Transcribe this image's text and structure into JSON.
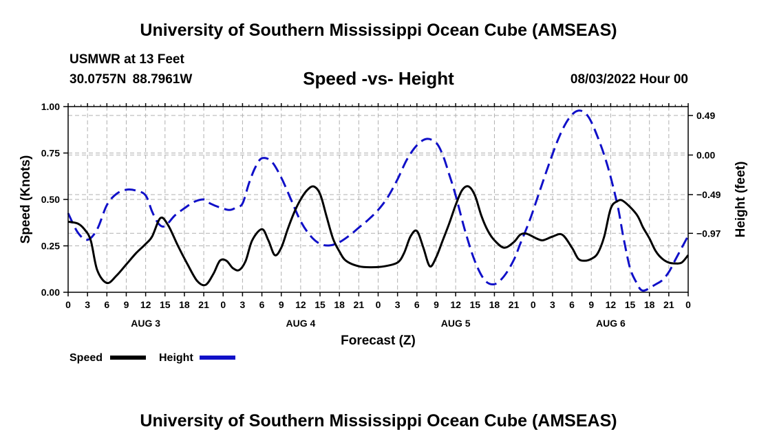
{
  "header": {
    "title": "University of Southern Mississippi Ocean Cube (AMSEAS)",
    "station": "USMWR at 13 Feet",
    "coordinates": "30.0757N  88.7961W",
    "subtitle": "Speed -vs- Height",
    "datestamp": "08/03/2022 Hour 00"
  },
  "footer": {
    "title": "University of Southern Mississippi Ocean Cube (AMSEAS)"
  },
  "chart_data": {
    "type": "line",
    "title": "Speed -vs- Height",
    "xlabel": "Forecast (Z)",
    "ylabel_left": "Speed (Knots)",
    "ylabel_right": "Height (feet)",
    "x_range_hours": [
      0,
      96
    ],
    "x_tick_step_hours": 3,
    "x_tick_labels": [
      "0",
      "3",
      "6",
      "9",
      "12",
      "15",
      "18",
      "21",
      "0",
      "3",
      "6",
      "9",
      "12",
      "15",
      "18",
      "21",
      "0",
      "3",
      "6",
      "9",
      "12",
      "15",
      "18",
      "21",
      "0",
      "3",
      "6",
      "9",
      "12",
      "15",
      "18",
      "21",
      "0"
    ],
    "day_labels": [
      {
        "hour": 12,
        "label": "AUG 3"
      },
      {
        "hour": 36,
        "label": "AUG 4"
      },
      {
        "hour": 60,
        "label": "AUG 5"
      },
      {
        "hour": 84,
        "label": "AUG 6"
      }
    ],
    "left_axis": {
      "range": [
        0,
        1.0
      ],
      "ticks": [
        0.0,
        0.25,
        0.5,
        0.75,
        1.0
      ],
      "tick_labels": [
        "0.00",
        "0.25",
        "0.50",
        "0.75",
        "1.00"
      ]
    },
    "right_axis": {
      "range": [
        -1.7,
        0.6
      ],
      "ticks": [
        0.49,
        0.0,
        -0.49,
        -0.97
      ],
      "tick_labels": [
        "0.49",
        "0.00",
        "−0.49",
        "−0.97"
      ]
    },
    "grid": true,
    "legend_position": "bottom-left",
    "series": [
      {
        "name": "Speed",
        "axis": "left",
        "color": "#000000",
        "style": "solid",
        "x": [
          0,
          1.5,
          2.5,
          3.5,
          4.5,
          6,
          7.5,
          9,
          10.5,
          12,
          13,
          14.3,
          15.5,
          17,
          18.5,
          20,
          21.3,
          22.5,
          23.5,
          24.5,
          25.5,
          26.5,
          27.5,
          28.5,
          30,
          31,
          32,
          33,
          34,
          35,
          36,
          37,
          38,
          39,
          40,
          41,
          42,
          43,
          45,
          47,
          49,
          51,
          52,
          53,
          54,
          55,
          56,
          57,
          58,
          59,
          60,
          61,
          62,
          63,
          64,
          65,
          66,
          67.5,
          69,
          70,
          71,
          72.5,
          73.5,
          75,
          76.5,
          78,
          79,
          80,
          81,
          82,
          83,
          84,
          85,
          86,
          88,
          89,
          90,
          91,
          92,
          93,
          94,
          95,
          96
        ],
        "values": [
          0.38,
          0.37,
          0.34,
          0.28,
          0.12,
          0.05,
          0.09,
          0.15,
          0.21,
          0.26,
          0.3,
          0.4,
          0.36,
          0.25,
          0.15,
          0.06,
          0.04,
          0.1,
          0.17,
          0.17,
          0.13,
          0.12,
          0.17,
          0.28,
          0.34,
          0.28,
          0.2,
          0.24,
          0.34,
          0.43,
          0.5,
          0.55,
          0.57,
          0.53,
          0.41,
          0.29,
          0.22,
          0.17,
          0.14,
          0.135,
          0.14,
          0.16,
          0.21,
          0.3,
          0.33,
          0.24,
          0.14,
          0.19,
          0.28,
          0.37,
          0.47,
          0.55,
          0.57,
          0.52,
          0.41,
          0.33,
          0.28,
          0.24,
          0.27,
          0.31,
          0.315,
          0.29,
          0.28,
          0.3,
          0.31,
          0.24,
          0.18,
          0.17,
          0.18,
          0.21,
          0.3,
          0.45,
          0.49,
          0.49,
          0.42,
          0.35,
          0.29,
          0.22,
          0.18,
          0.16,
          0.155,
          0.16,
          0.2
        ]
      },
      {
        "name": "Height",
        "axis": "right",
        "color": "#1010c8",
        "style": "dashed",
        "x": [
          0,
          1.5,
          3,
          4.5,
          6,
          7.5,
          9,
          10.5,
          12,
          13,
          14,
          15,
          16.5,
          18,
          19.5,
          21,
          22,
          23.5,
          25,
          26,
          27,
          28,
          29,
          30,
          31.5,
          33,
          34.5,
          36,
          37.5,
          39,
          40.5,
          42,
          43.5,
          45,
          46.5,
          48,
          49.5,
          51,
          52.5,
          54,
          55.5,
          57,
          58,
          59,
          60,
          61.5,
          63,
          64.5,
          66,
          67.5,
          69,
          70,
          71.5,
          73,
          74.5,
          76,
          77.5,
          79,
          80.5,
          82,
          83.5,
          85,
          86,
          87,
          88,
          89,
          91,
          92,
          93,
          94,
          96
        ],
        "values": [
          -0.72,
          -0.96,
          -1.05,
          -0.92,
          -0.62,
          -0.48,
          -0.43,
          -0.44,
          -0.5,
          -0.7,
          -0.85,
          -0.88,
          -0.75,
          -0.66,
          -0.58,
          -0.55,
          -0.6,
          -0.65,
          -0.68,
          -0.65,
          -0.6,
          -0.35,
          -0.15,
          -0.04,
          -0.08,
          -0.28,
          -0.55,
          -0.82,
          -1.0,
          -1.1,
          -1.12,
          -1.08,
          -1.0,
          -0.9,
          -0.8,
          -0.68,
          -0.52,
          -0.3,
          -0.05,
          0.12,
          0.2,
          0.15,
          0.0,
          -0.24,
          -0.5,
          -0.95,
          -1.32,
          -1.55,
          -1.6,
          -1.5,
          -1.3,
          -1.1,
          -0.8,
          -0.45,
          -0.1,
          0.22,
          0.45,
          0.55,
          0.48,
          0.22,
          -0.13,
          -0.6,
          -1.03,
          -1.4,
          -1.58,
          -1.68,
          -1.6,
          -1.55,
          -1.45,
          -1.3,
          -1.0
        ]
      }
    ]
  }
}
